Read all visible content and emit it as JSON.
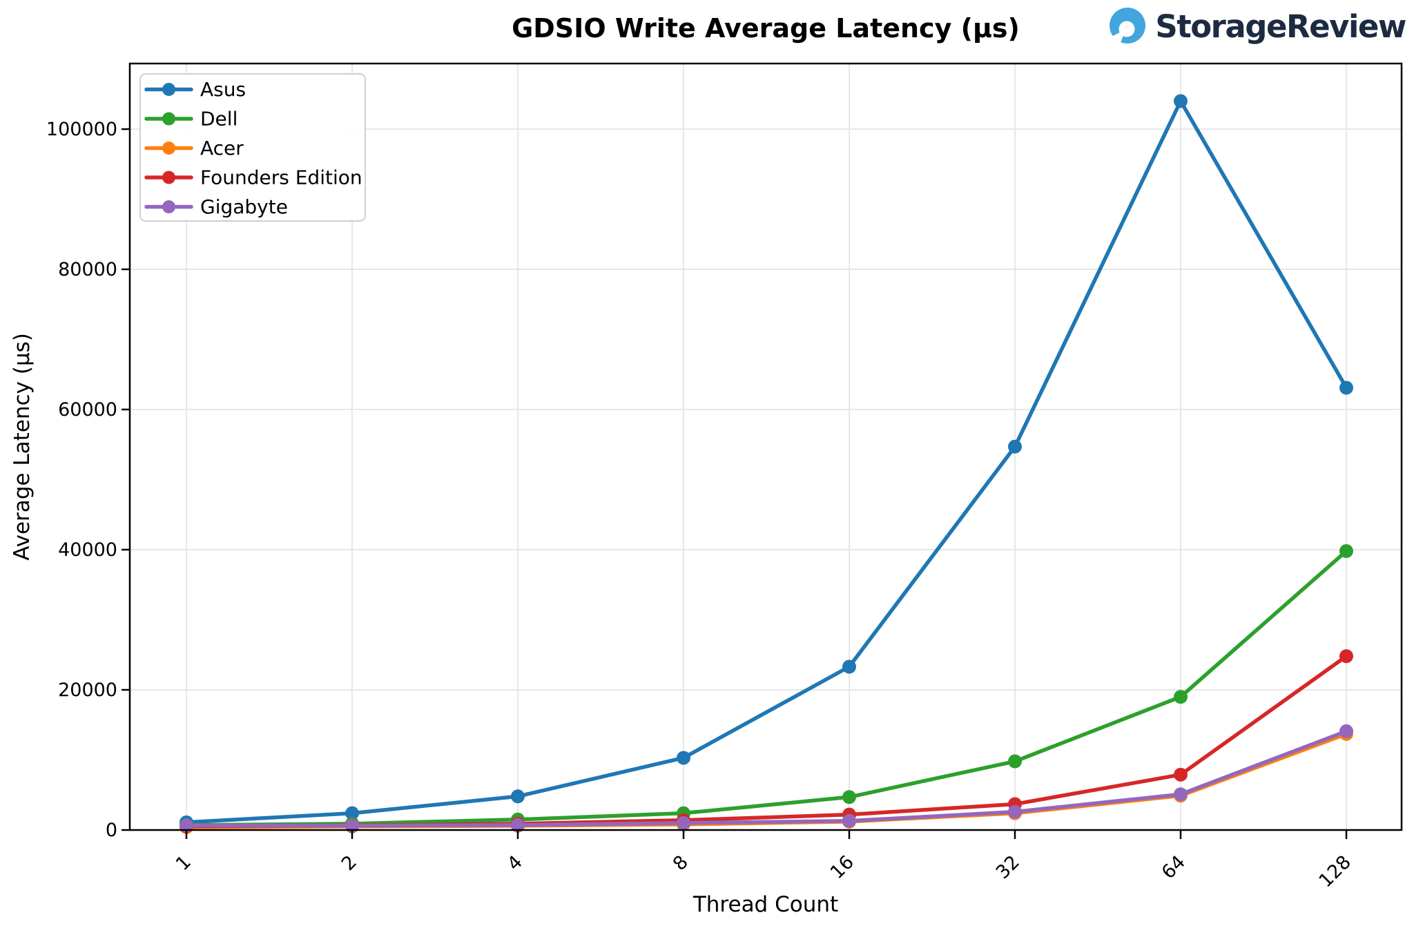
{
  "page": {
    "background": "#ffffff"
  },
  "logo": {
    "text": "StorageReview",
    "icon": "storagereview-circle-icon",
    "icon_color": "#41a6dd",
    "text_color": "#1d2b42"
  },
  "chart_data": {
    "type": "line",
    "title": "GDSIO Write Average Latency (μs)",
    "xlabel": "Thread Count",
    "ylabel": "Average Latency (μs)",
    "categories": [
      1,
      2,
      4,
      8,
      16,
      32,
      64,
      128
    ],
    "x_scale": "log2-categorical",
    "ylim": [
      0,
      110000
    ],
    "y_ticks": [
      0,
      20000,
      40000,
      60000,
      80000,
      100000
    ],
    "grid": true,
    "grid_color": "#e7e7e7",
    "legend_position": "upper-left",
    "series": [
      {
        "name": "Asus",
        "color": "#1f77b4",
        "values": [
          1100,
          2400,
          4800,
          10300,
          23300,
          54700,
          104000,
          63100
        ]
      },
      {
        "name": "Dell",
        "color": "#2ca02c",
        "values": [
          700,
          900,
          1500,
          2400,
          4700,
          9800,
          19000,
          39800
        ]
      },
      {
        "name": "Acer",
        "color": "#ff7f0e",
        "values": [
          400,
          500,
          600,
          800,
          1200,
          2400,
          4900,
          13700
        ]
      },
      {
        "name": "Founders Edition",
        "color": "#d62728",
        "values": [
          550,
          650,
          900,
          1400,
          2200,
          3700,
          7900,
          24800
        ]
      },
      {
        "name": "Gigabyte",
        "color": "#9467bd",
        "values": [
          650,
          620,
          700,
          1000,
          1300,
          2600,
          5100,
          14100
        ]
      }
    ]
  }
}
